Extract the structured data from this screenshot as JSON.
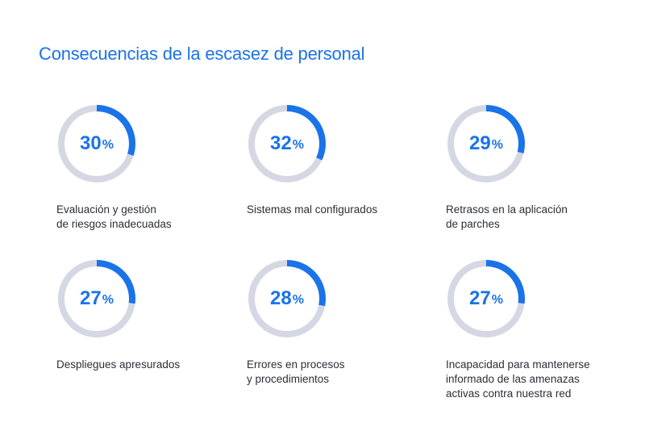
{
  "title": "Consecuencias de la escasez de personal",
  "colors": {
    "accent": "#1a73e8",
    "track": "#d5d8e3",
    "text": "#2b2f38"
  },
  "chart_data": {
    "type": "pie",
    "title": "Consecuencias de la escasez de personal",
    "unit": "%",
    "items": [
      {
        "value": 30,
        "label_lines": [
          "Evaluación y gestión",
          "de riesgos inadecuadas"
        ]
      },
      {
        "value": 32,
        "label_lines": [
          "Sistemas mal configurados"
        ]
      },
      {
        "value": 29,
        "label_lines": [
          "Retrasos en la aplicación",
          "de parches"
        ]
      },
      {
        "value": 27,
        "label_lines": [
          "Despliegues apresurados"
        ]
      },
      {
        "value": 28,
        "label_lines": [
          "Errores en procesos",
          "y procedimientos"
        ]
      },
      {
        "value": 27,
        "label_lines": [
          "Incapacidad para mantenerse",
          "informado de las amenazas",
          "activas contra nuestra red"
        ]
      }
    ]
  }
}
